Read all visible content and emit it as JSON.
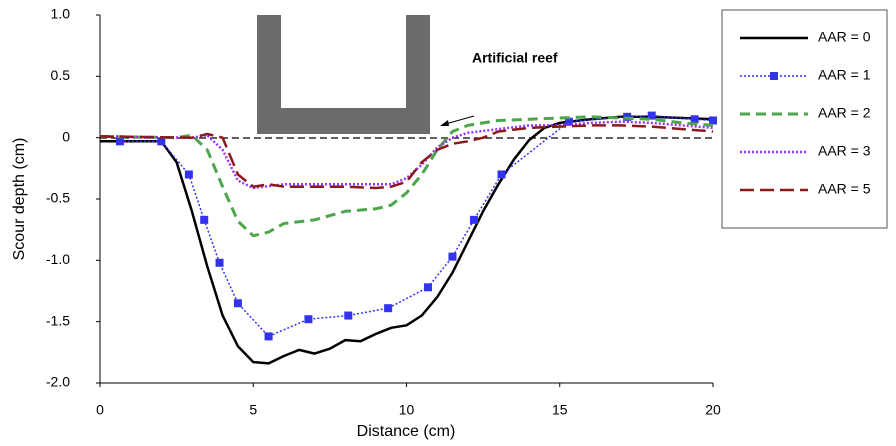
{
  "chart_data": {
    "type": "line",
    "xlabel": "Distance (cm)",
    "ylabel": "Scour depth (cm)",
    "annotation": "Artificial reef",
    "xlim": [
      0,
      20
    ],
    "xticks": [
      0,
      5,
      10,
      15,
      20
    ],
    "ylim": [
      -2.0,
      1.0
    ],
    "yticks": [
      {
        "value": 1.0,
        "label": "1.0"
      },
      {
        "value": 0.5,
        "label": "0.5"
      },
      0,
      {
        "value": -0.5,
        "label": "-0.5"
      },
      {
        "value": -1.0,
        "label": "-1.0"
      },
      {
        "value": -1.5,
        "label": "-1.5"
      },
      {
        "value": -2.0,
        "label": "-2.0"
      }
    ],
    "series": [
      {
        "name": "AAR = 0",
        "color": "#000000",
        "dash": "none",
        "width": 2.5,
        "markers": false,
        "x": [
          0,
          2,
          2.5,
          3,
          3.5,
          4,
          4.5,
          5,
          5.5,
          6,
          6.5,
          7,
          7.5,
          8,
          8.5,
          9,
          9.5,
          10,
          10.5,
          11,
          11.5,
          12,
          12.5,
          13,
          13.5,
          14,
          14.5,
          15,
          16,
          17,
          18,
          19,
          20
        ],
        "values": [
          -0.03,
          -0.03,
          -0.2,
          -0.6,
          -1.05,
          -1.45,
          -1.7,
          -1.83,
          -1.84,
          -1.78,
          -1.73,
          -1.76,
          -1.72,
          -1.65,
          -1.66,
          -1.6,
          -1.55,
          -1.53,
          -1.45,
          -1.3,
          -1.1,
          -0.85,
          -0.6,
          -0.38,
          -0.18,
          -0.02,
          0.08,
          0.12,
          0.15,
          0.17,
          0.17,
          0.16,
          0.15
        ]
      },
      {
        "name": "AAR = 1",
        "color": "#3333ee",
        "dash": "2 2",
        "width": 1.5,
        "markers": true,
        "x": [
          0.65,
          2.0,
          2.9,
          3.4,
          3.9,
          4.5,
          5.5,
          6.8,
          8.1,
          9.4,
          10.7,
          11.5,
          12.2,
          13.1,
          15.3,
          17.2,
          18.0,
          19.4,
          20
        ],
        "values": [
          -0.03,
          -0.03,
          -0.3,
          -0.67,
          -1.02,
          -1.35,
          -1.62,
          -1.48,
          -1.45,
          -1.39,
          -1.22,
          -0.97,
          -0.67,
          -0.3,
          0.13,
          0.17,
          0.18,
          0.15,
          0.14
        ]
      },
      {
        "name": "AAR = 2",
        "color": "#4ca64c",
        "dash": "10 6",
        "width": 3,
        "markers": false,
        "x": [
          0,
          2.5,
          3,
          3.5,
          4,
          4.5,
          5,
          5.5,
          6,
          7,
          8,
          9,
          9.5,
          10,
          10.5,
          11,
          11.5,
          12,
          12.5,
          13,
          14,
          15,
          16,
          17,
          18,
          19,
          20
        ],
        "values": [
          0.01,
          0.0,
          0.02,
          -0.1,
          -0.4,
          -0.68,
          -0.8,
          -0.77,
          -0.7,
          -0.67,
          -0.6,
          -0.58,
          -0.55,
          -0.45,
          -0.3,
          -0.1,
          0.05,
          0.1,
          0.12,
          0.14,
          0.15,
          0.16,
          0.17,
          0.16,
          0.15,
          0.12,
          0.1
        ]
      },
      {
        "name": "AAR = 3",
        "color": "#9933ff",
        "dash": "2 2",
        "width": 2.5,
        "markers": false,
        "x": [
          0,
          3,
          3.5,
          4,
          4.5,
          5,
          6,
          7,
          8,
          9,
          9.5,
          10,
          10.5,
          11,
          11.5,
          12,
          13,
          14,
          15,
          16,
          17,
          18,
          19,
          20
        ],
        "values": [
          0.01,
          0.0,
          0.02,
          -0.1,
          -0.35,
          -0.41,
          -0.38,
          -0.38,
          -0.38,
          -0.38,
          -0.38,
          -0.33,
          -0.22,
          -0.08,
          0.0,
          0.04,
          0.07,
          0.1,
          0.1,
          0.12,
          0.13,
          0.12,
          0.1,
          0.08
        ]
      },
      {
        "name": "AAR = 5",
        "color": "#8b1a1a",
        "dash": "14 6",
        "width": 2.5,
        "markers": false,
        "x": [
          0,
          3,
          3.5,
          4,
          4.5,
          5,
          5.5,
          6,
          7,
          8,
          9,
          9.5,
          10,
          10.5,
          11,
          11.5,
          12,
          12.5,
          13,
          14,
          15,
          16,
          17,
          18,
          19,
          20
        ],
        "values": [
          0.01,
          0.0,
          0.03,
          0.0,
          -0.3,
          -0.4,
          -0.38,
          -0.4,
          -0.4,
          -0.4,
          -0.41,
          -0.4,
          -0.36,
          -0.2,
          -0.1,
          -0.05,
          -0.03,
          0.0,
          0.05,
          0.08,
          0.09,
          0.1,
          0.1,
          0.09,
          0.07,
          0.05
        ]
      }
    ]
  }
}
